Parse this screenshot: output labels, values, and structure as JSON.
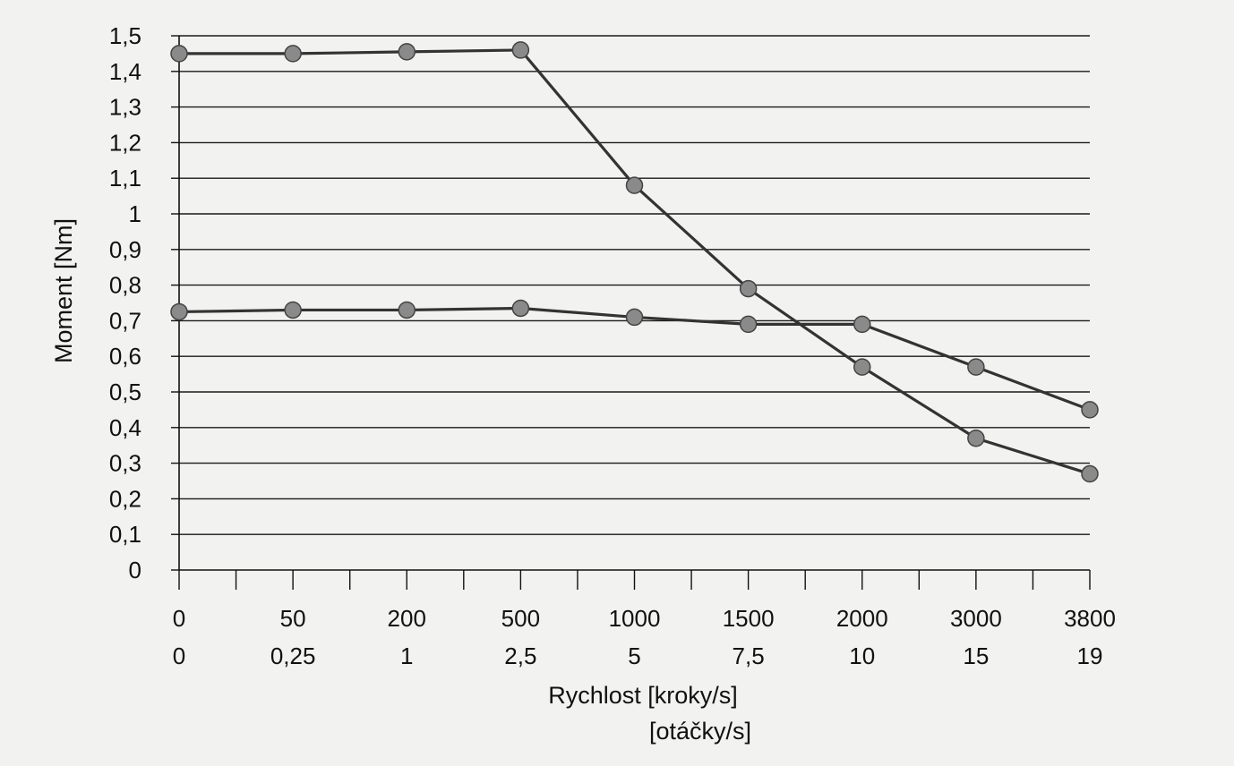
{
  "chart_data": {
    "type": "line",
    "title": "",
    "xlabel": "Rychlost [kroky/s]",
    "xlabel2": "[otáčky/s]",
    "ylabel": "Moment [Nm]",
    "ylim": [
      0,
      1.5
    ],
    "y_ticks": [
      "0",
      "0,1",
      "0,2",
      "0,3",
      "0,4",
      "0,5",
      "0,6",
      "0,7",
      "0,8",
      "0,9",
      "1",
      "1,1",
      "1,2",
      "1,3",
      "1,4",
      "1,5"
    ],
    "categories": [
      "0",
      "50",
      "200",
      "500",
      "1000",
      "1500",
      "2000",
      "3000",
      "3800"
    ],
    "categories2": [
      "0",
      "0,25",
      "1",
      "2,5",
      "5",
      "7,5",
      "10",
      "15",
      "19"
    ],
    "grid": true,
    "legend": "none",
    "series": [
      {
        "values": [
          1.45,
          1.45,
          1.455,
          1.46,
          1.08,
          0.79,
          0.57,
          0.37,
          0.27
        ]
      },
      {
        "values": [
          0.725,
          0.73,
          0.73,
          0.735,
          0.71,
          0.69,
          0.69,
          0.57,
          0.45
        ]
      }
    ],
    "colors": {
      "line": "#333333",
      "marker": "#8a8a8a",
      "grid": "#1a1a1a",
      "axis": "#111111"
    }
  }
}
